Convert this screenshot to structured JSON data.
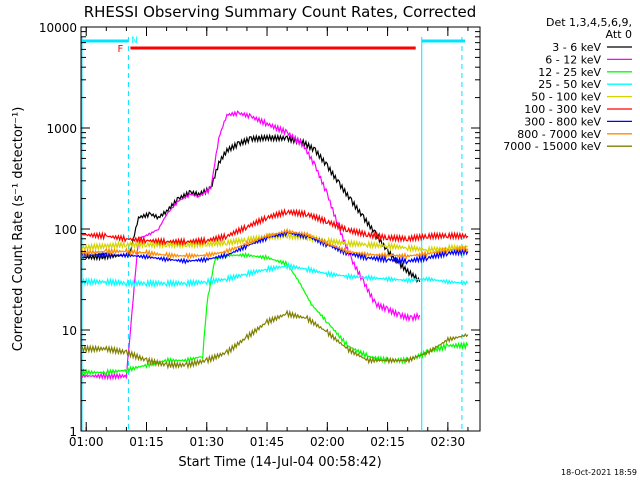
{
  "chart_data": {
    "type": "line",
    "title": "RHESSI Observing Summary Count Rates, Corrected",
    "ylabel": "Corrected Count Rate (s⁻¹ detector⁻¹)",
    "xlabel": "Start Time (14-Jul-04 00:58:42)",
    "y_scale": "log",
    "ylim": [
      1,
      10000
    ],
    "xlim": [
      "00:58:42",
      "02:38:00"
    ],
    "y_ticks": [
      {
        "value": 1,
        "label": "1"
      },
      {
        "value": 10,
        "label": "10"
      },
      {
        "value": 100,
        "label": "100"
      },
      {
        "value": 1000,
        "label": "1000"
      },
      {
        "value": 10000,
        "label": "10000"
      }
    ],
    "x_ticks": [
      {
        "value": "01:00",
        "label": "01:00"
      },
      {
        "value": "01:15",
        "label": "01:15"
      },
      {
        "value": "01:30",
        "label": "01:30"
      },
      {
        "value": "01:45",
        "label": "01:45"
      },
      {
        "value": "02:00",
        "label": "02:00"
      },
      {
        "value": "02:15",
        "label": "02:15"
      },
      {
        "value": "02:30",
        "label": "02:30"
      }
    ],
    "legend_header": [
      "Det 1,3,4,5,6,9,",
      "Att 0"
    ],
    "legend_position": "right",
    "series": [
      {
        "name": "3 - 6 keV",
        "color": "#000000",
        "x": [
          "00:59",
          "01:10",
          "01:11",
          "01:13",
          "01:16",
          "01:18",
          "01:20",
          "01:23",
          "01:26",
          "01:28",
          "01:31",
          "01:33",
          "01:35",
          "01:38",
          "01:41",
          "01:45",
          "01:50",
          "01:54",
          "01:57",
          "02:00",
          "02:03",
          "02:06",
          "02:09",
          "02:12",
          "02:15",
          "02:18",
          "02:20",
          "02:22",
          "02:23"
        ],
        "y": [
          52,
          55,
          60,
          130,
          140,
          130,
          150,
          200,
          230,
          220,
          250,
          450,
          600,
          700,
          780,
          800,
          790,
          720,
          600,
          420,
          280,
          190,
          130,
          90,
          60,
          45,
          38,
          33,
          30
        ]
      },
      {
        "name": "6 - 12 keV",
        "color": "#ff00ff",
        "x": [
          "00:59",
          "01:10",
          "01:11",
          "01:13",
          "01:16",
          "01:18",
          "01:20",
          "01:23",
          "01:26",
          "01:28",
          "01:31",
          "01:33",
          "01:35",
          "01:38",
          "01:41",
          "01:45",
          "01:50",
          "01:54",
          "01:57",
          "02:00",
          "02:03",
          "02:06",
          "02:09",
          "02:12",
          "02:15",
          "02:18",
          "02:21",
          "02:23"
        ],
        "y": [
          3.5,
          3.5,
          10,
          80,
          90,
          100,
          140,
          190,
          220,
          210,
          250,
          800,
          1350,
          1400,
          1300,
          1100,
          900,
          680,
          420,
          220,
          100,
          50,
          30,
          18,
          16,
          14,
          13,
          14
        ]
      },
      {
        "name": "12 - 25 keV",
        "color": "#00ff00",
        "x": [
          "00:59",
          "01:05",
          "01:10",
          "01:15",
          "01:20",
          "01:25",
          "01:29",
          "01:30",
          "01:32",
          "01:35",
          "01:40",
          "01:45",
          "01:50",
          "01:53",
          "01:56",
          "02:00",
          "02:05",
          "02:10",
          "02:15",
          "02:20",
          "02:25",
          "02:30",
          "02:35"
        ],
        "y": [
          3.8,
          3.8,
          4,
          4.5,
          5,
          5,
          5.5,
          18,
          50,
          55,
          55,
          52,
          45,
          30,
          18,
          12,
          7,
          5.5,
          5,
          5,
          6,
          7,
          7
        ]
      },
      {
        "name": "25 - 50 keV",
        "color": "#00ffff",
        "x": [
          "00:59",
          "01:05",
          "01:10",
          "01:15",
          "01:20",
          "01:25",
          "01:30",
          "01:35",
          "01:40",
          "01:45",
          "01:50",
          "01:55",
          "02:00",
          "02:05",
          "02:10",
          "02:15",
          "02:20",
          "02:25",
          "02:30",
          "02:35"
        ],
        "y": [
          30,
          30,
          29,
          29,
          29,
          29,
          30,
          32,
          36,
          40,
          43,
          40,
          36,
          34,
          33,
          32,
          31,
          32,
          30,
          29
        ]
      },
      {
        "name": "50 - 100 keV",
        "color": "#d4d400",
        "x": [
          "00:59",
          "01:05",
          "01:10",
          "01:15",
          "01:20",
          "01:25",
          "01:30",
          "01:35",
          "01:40",
          "01:45",
          "01:50",
          "01:55",
          "02:00",
          "02:05",
          "02:10",
          "02:15",
          "02:20",
          "02:25",
          "02:30",
          "02:35"
        ],
        "y": [
          65,
          68,
          70,
          70,
          70,
          70,
          71,
          73,
          78,
          83,
          86,
          82,
          76,
          72,
          70,
          68,
          65,
          62,
          65,
          67
        ]
      },
      {
        "name": "100 - 300 keV",
        "color": "#ff0000",
        "x": [
          "00:59",
          "01:05",
          "01:10",
          "01:15",
          "01:20",
          "01:25",
          "01:30",
          "01:35",
          "01:40",
          "01:45",
          "01:50",
          "01:55",
          "02:00",
          "02:05",
          "02:10",
          "02:15",
          "02:20",
          "02:25",
          "02:30",
          "02:35"
        ],
        "y": [
          88,
          85,
          80,
          77,
          75,
          75,
          77,
          85,
          105,
          130,
          148,
          140,
          118,
          98,
          88,
          82,
          80,
          85,
          86,
          85
        ]
      },
      {
        "name": "300 - 800 keV",
        "color": "#0000ff",
        "x": [
          "00:59",
          "01:05",
          "01:10",
          "01:15",
          "01:20",
          "01:25",
          "01:30",
          "01:35",
          "01:40",
          "01:45",
          "01:50",
          "01:55",
          "02:00",
          "02:05",
          "02:10",
          "02:15",
          "02:20",
          "02:25",
          "02:30",
          "02:35"
        ],
        "y": [
          55,
          55,
          55,
          53,
          50,
          48,
          50,
          55,
          68,
          82,
          92,
          85,
          70,
          58,
          52,
          50,
          48,
          52,
          58,
          60
        ]
      },
      {
        "name": "800 - 7000 keV",
        "color": "#ff8c00",
        "x": [
          "00:59",
          "01:05",
          "01:10",
          "01:15",
          "01:20",
          "01:25",
          "01:30",
          "01:35",
          "01:40",
          "01:45",
          "01:50",
          "01:55",
          "02:00",
          "02:05",
          "02:10",
          "02:15",
          "02:20",
          "02:25",
          "02:30",
          "02:35"
        ],
        "y": [
          58,
          60,
          60,
          58,
          55,
          54,
          55,
          60,
          72,
          85,
          95,
          88,
          72,
          60,
          56,
          55,
          54,
          57,
          62,
          64
        ]
      },
      {
        "name": "7000 - 15000 keV",
        "color": "#808000",
        "x": [
          "00:59",
          "01:05",
          "01:10",
          "01:15",
          "01:20",
          "01:25",
          "01:30",
          "01:35",
          "01:40",
          "01:45",
          "01:50",
          "01:55",
          "02:00",
          "02:05",
          "02:10",
          "02:15",
          "02:20",
          "02:25",
          "02:30",
          "02:35"
        ],
        "y": [
          6.5,
          6.5,
          6,
          5,
          4.5,
          4.5,
          5,
          6,
          8.5,
          12,
          14.5,
          13,
          9.5,
          6.5,
          5,
          5,
          5,
          6,
          8,
          9
        ]
      }
    ],
    "annotations": [
      {
        "label": "F",
        "color": "#ff0000"
      },
      {
        "label": "N",
        "color": "#00ffff"
      }
    ],
    "footer_timestamp": "18-Oct-2021 18:59"
  }
}
